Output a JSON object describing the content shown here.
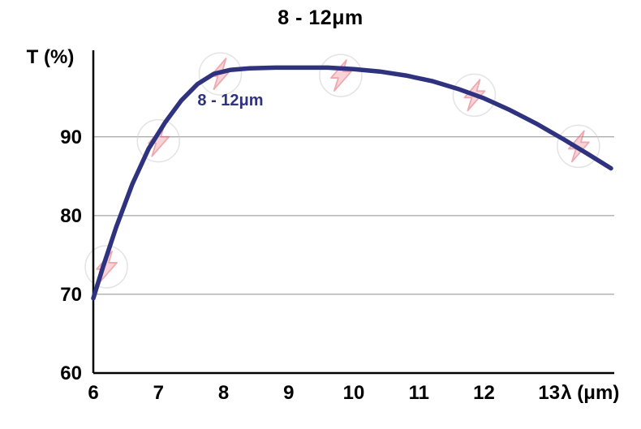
{
  "page": {
    "background": "#ffffff"
  },
  "chart_data": {
    "type": "line",
    "title": "8 - 12μm",
    "ylabel": "T (%)",
    "xlabel": "λ (μm)",
    "xlim": [
      6,
      14
    ],
    "ylim": [
      60,
      101
    ],
    "x_ticks": [
      6,
      7,
      8,
      9,
      10,
      11,
      12,
      13
    ],
    "y_ticks": [
      60,
      70,
      80,
      90
    ],
    "gridlines_y": [
      70,
      80,
      90
    ],
    "grid": "horizontal-only",
    "legend_position": "none",
    "axis_color": "#000000",
    "gridline_color": "#8f8f8f",
    "series": [
      {
        "name": "8 - 12μm",
        "color": "#2f327e",
        "x": [
          6.0,
          6.15,
          6.35,
          6.6,
          6.85,
          7.1,
          7.35,
          7.6,
          7.85,
          8.1,
          8.4,
          8.8,
          9.2,
          9.6,
          10.0,
          10.4,
          10.8,
          11.2,
          11.6,
          12.0,
          12.4,
          12.8,
          13.2,
          13.6,
          13.95
        ],
        "y": [
          69.5,
          73.5,
          78.5,
          84.0,
          88.5,
          91.8,
          94.6,
          96.7,
          98.0,
          98.5,
          98.7,
          98.8,
          98.8,
          98.8,
          98.6,
          98.3,
          97.8,
          97.1,
          96.1,
          94.9,
          93.4,
          91.7,
          89.8,
          87.8,
          86.0
        ]
      }
    ],
    "annotations": [
      {
        "text": "8 - 12μm",
        "x": 7.6,
        "y": 94.0,
        "color": "#2f327e",
        "font_size": 20
      }
    ],
    "watermarks": [
      {
        "x": 6.2,
        "y": 73.5
      },
      {
        "x": 7.0,
        "y": 89.5
      },
      {
        "x": 7.95,
        "y": 98.0
      },
      {
        "x": 9.8,
        "y": 97.8
      },
      {
        "x": 11.85,
        "y": 95.3
      },
      {
        "x": 13.45,
        "y": 88.8
      },
      {
        "watermark_circle_color": "#c9c9c9",
        "watermark_bolt_fill": "#f3aab5",
        "watermark_bolt_stroke": "#df5562"
      }
    ],
    "xlabel_position_x": 13.63
  }
}
